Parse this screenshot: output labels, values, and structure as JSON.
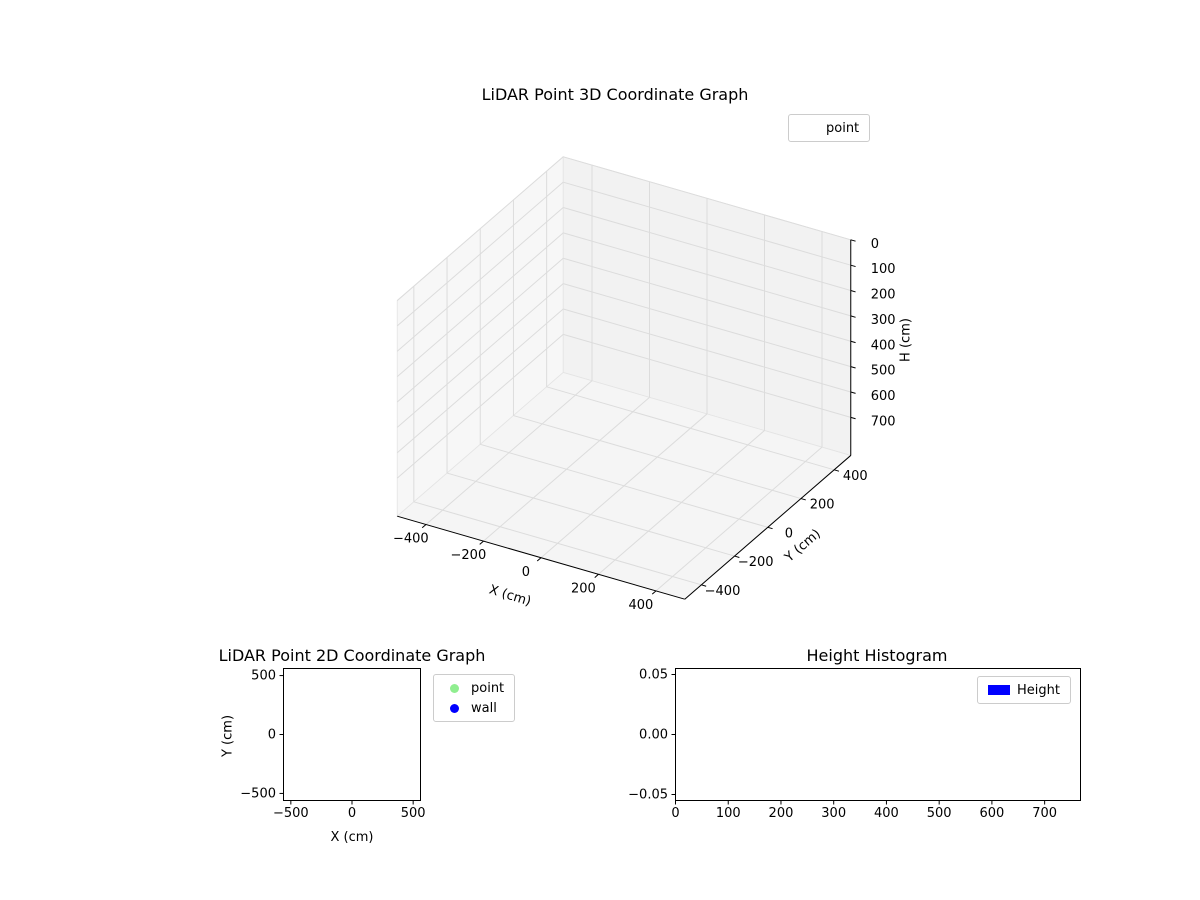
{
  "figure": {
    "background": "#ffffff",
    "text_color": "#000000"
  },
  "chart_data": [
    {
      "id": "lidar-3d",
      "type": "scatter3d",
      "title": "LiDAR Point 3D Coordinate Graph",
      "xlabel": "X (cm)",
      "ylabel": "Y (cm)",
      "zlabel": "H (cm)",
      "xlim": [
        -500,
        500
      ],
      "ylim": [
        -500,
        500
      ],
      "zlim": [
        0,
        850
      ],
      "z_axis_inverted": true,
      "xticks": {
        "values": [
          -400,
          -200,
          0,
          200,
          400
        ],
        "labels": [
          "−400",
          "−200",
          "0",
          "200",
          "400"
        ]
      },
      "yticks": {
        "values": [
          -400,
          -200,
          0,
          200,
          400
        ],
        "labels": [
          "−400",
          "−200",
          "0",
          "200",
          "400"
        ]
      },
      "zticks": {
        "values": [
          0,
          100,
          200,
          300,
          400,
          500,
          600,
          700
        ],
        "labels": [
          "0",
          "100",
          "200",
          "300",
          "400",
          "500",
          "600",
          "700"
        ]
      },
      "grid": true,
      "pane_color": "#f2f2f2",
      "grid_color": "#dcdcdc",
      "legend": {
        "location": "upper right",
        "entries": [
          {
            "label": "point",
            "marker": "none",
            "color": "#90ee90"
          }
        ]
      },
      "series": [
        {
          "name": "point",
          "color": "#90ee90",
          "points": []
        }
      ]
    },
    {
      "id": "lidar-2d",
      "type": "scatter",
      "title": "LiDAR Point 2D Coordinate Graph",
      "xlabel": "X (cm)",
      "ylabel": "Y (cm)",
      "xlim": [
        -560,
        560
      ],
      "ylim": [
        -560,
        560
      ],
      "xticks": {
        "values": [
          -500,
          0,
          500
        ],
        "labels": [
          "−500",
          "0",
          "500"
        ]
      },
      "yticks": {
        "values": [
          -500,
          0,
          500
        ],
        "labels": [
          "−500",
          "0",
          "500"
        ]
      },
      "grid": false,
      "legend": {
        "location": "outside upper right",
        "entries": [
          {
            "label": "point",
            "marker": "circle",
            "color": "#90ee90"
          },
          {
            "label": "wall",
            "marker": "circle",
            "color": "#0000ff"
          }
        ]
      },
      "series": [
        {
          "name": "point",
          "color": "#90ee90",
          "points": []
        },
        {
          "name": "wall",
          "color": "#0000ff",
          "points": []
        }
      ]
    },
    {
      "id": "height-histogram",
      "type": "histogram",
      "title": "Height Histogram",
      "xlabel": "",
      "ylabel": "",
      "xlim": [
        0,
        768
      ],
      "ylim": [
        -0.055,
        0.055
      ],
      "xticks": {
        "values": [
          0,
          100,
          200,
          300,
          400,
          500,
          600,
          700
        ],
        "labels": [
          "0",
          "100",
          "200",
          "300",
          "400",
          "500",
          "600",
          "700"
        ]
      },
      "yticks": {
        "values": [
          -0.05,
          0,
          0.05
        ],
        "labels": [
          "−0.05",
          "0.00",
          "0.05"
        ]
      },
      "grid": false,
      "legend": {
        "location": "upper right",
        "entries": [
          {
            "label": "Height",
            "marker": "rect",
            "color": "#0000ff"
          }
        ]
      },
      "values": []
    }
  ]
}
